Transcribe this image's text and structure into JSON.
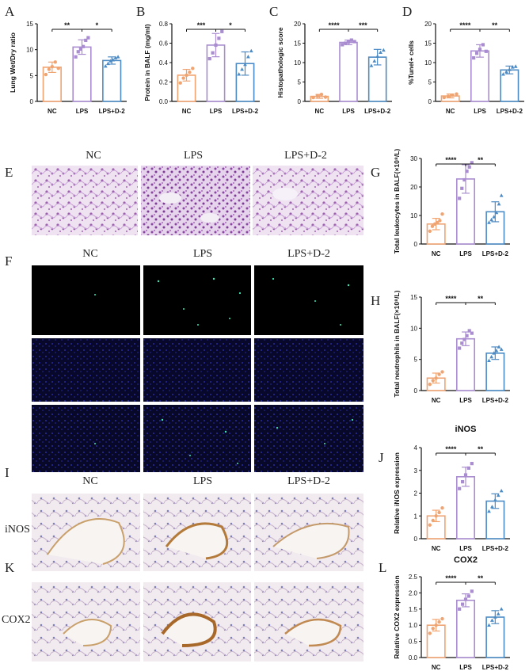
{
  "figure": {
    "panel_letters": [
      "A",
      "B",
      "C",
      "D",
      "E",
      "F",
      "G",
      "H",
      "I",
      "J",
      "K",
      "L"
    ],
    "histology_conditions": [
      "NC",
      "LPS",
      "LPS+D-2"
    ],
    "stain_row_labels": {
      "inos": "iNOS",
      "cox2": "COX2"
    },
    "colors": {
      "NC": "#f0a472",
      "LPS": "#a98dd0",
      "LPS+D-2": "#4d8bc4",
      "he_stain": "#c9a3d6",
      "ihc_stain": "#d9c7d8",
      "fluorescence_bg": "#000000",
      "dapi_bg": "#0c0c3a"
    }
  },
  "chart_data": [
    {
      "panel": "A",
      "type": "bar",
      "title": "",
      "categories": [
        "NC",
        "LPS",
        "LPS+D-2"
      ],
      "values": [
        6.6,
        10.5,
        7.9
      ],
      "sd": [
        1.0,
        1.4,
        0.7
      ],
      "points": [
        [
          5.2,
          6.2,
          6.7,
          7.6,
          6.4
        ],
        [
          8.6,
          9.6,
          10.1,
          10.6,
          11.8,
          12.3
        ],
        [
          6.8,
          7.3,
          7.8,
          8.0,
          8.4,
          8.6
        ]
      ],
      "ylabel": "Lung Wet/Dry ratio",
      "ylim": [
        0,
        15
      ],
      "yticks": [
        0,
        5,
        10,
        15
      ],
      "significance": [
        {
          "from": 0,
          "to": 1,
          "label": "**"
        },
        {
          "from": 1,
          "to": 2,
          "label": "*"
        }
      ]
    },
    {
      "panel": "B",
      "type": "bar",
      "title": "",
      "categories": [
        "NC",
        "LPS",
        "LPS+D-2"
      ],
      "values": [
        0.27,
        0.58,
        0.39
      ],
      "sd": [
        0.06,
        0.12,
        0.12
      ],
      "points": [
        [
          0.19,
          0.24,
          0.27,
          0.3,
          0.34
        ],
        [
          0.44,
          0.5,
          0.58,
          0.65,
          0.72
        ],
        [
          0.28,
          0.33,
          0.38,
          0.46,
          0.52
        ]
      ],
      "ylabel": "Protein in BALF (mg/ml)",
      "ylim": [
        0,
        0.8
      ],
      "yticks": [
        0.0,
        0.2,
        0.4,
        0.6,
        0.8
      ],
      "significance": [
        {
          "from": 0,
          "to": 1,
          "label": "***"
        },
        {
          "from": 1,
          "to": 2,
          "label": "*"
        }
      ]
    },
    {
      "panel": "C",
      "type": "bar",
      "title": "",
      "categories": [
        "NC",
        "LPS",
        "LPS+D-2"
      ],
      "values": [
        1.3,
        15.2,
        11.4
      ],
      "sd": [
        0.5,
        0.6,
        2.0
      ],
      "points": [
        [
          1.0,
          1.4,
          1.8,
          1.1
        ],
        [
          14.6,
          15.0,
          15.3,
          15.8,
          15.4
        ],
        [
          9.2,
          10.4,
          11.6,
          12.6,
          13.2
        ]
      ],
      "ylabel": "Histopathologic score",
      "ylim": [
        0,
        20
      ],
      "yticks": [
        0,
        5,
        10,
        15,
        20
      ],
      "significance": [
        {
          "from": 0,
          "to": 1,
          "label": "****"
        },
        {
          "from": 1,
          "to": 2,
          "label": "***"
        }
      ]
    },
    {
      "panel": "D",
      "type": "bar",
      "title": "",
      "categories": [
        "NC",
        "LPS",
        "LPS+D-2"
      ],
      "values": [
        1.4,
        13.0,
        8.1
      ],
      "sd": [
        0.5,
        1.6,
        1.0
      ],
      "points": [
        [
          1.0,
          1.3,
          1.6,
          1.9
        ],
        [
          11.2,
          12.4,
          13.4,
          14.6,
          12.9
        ],
        [
          7.0,
          7.6,
          8.2,
          8.8,
          9.0
        ]
      ],
      "ylabel": "%Tunel+ cells",
      "ylim": [
        0,
        20
      ],
      "yticks": [
        0,
        5,
        10,
        15,
        20
      ],
      "significance": [
        {
          "from": 0,
          "to": 1,
          "label": "****"
        },
        {
          "from": 1,
          "to": 2,
          "label": "**"
        }
      ]
    },
    {
      "panel": "G",
      "type": "bar",
      "title": "",
      "categories": [
        "NC",
        "LPS",
        "LPS+D-2"
      ],
      "values": [
        7.0,
        22.8,
        11.3
      ],
      "sd": [
        2.0,
        5.0,
        3.5
      ],
      "points": [
        [
          4.5,
          6.2,
          7.0,
          7.5,
          8.2,
          10.5
        ],
        [
          16.0,
          19.5,
          22.5,
          25.5,
          27.0,
          28.5
        ],
        [
          7.5,
          8.5,
          9.5,
          11.0,
          14.0,
          17.0
        ]
      ],
      "ylabel": "Total leukocytes in BALF(×10⁸/L)",
      "ylim": [
        0,
        30
      ],
      "yticks": [
        0,
        10,
        20,
        30
      ],
      "significance": [
        {
          "from": 0,
          "to": 1,
          "label": "****"
        },
        {
          "from": 1,
          "to": 2,
          "label": "**"
        }
      ]
    },
    {
      "panel": "H",
      "type": "bar",
      "title": "",
      "categories": [
        "NC",
        "LPS",
        "LPS+D-2"
      ],
      "values": [
        2.0,
        8.3,
        6.0
      ],
      "sd": [
        0.8,
        1.1,
        1.0
      ],
      "points": [
        [
          1.0,
          1.6,
          2.0,
          2.6,
          3.0
        ],
        [
          6.8,
          7.6,
          8.2,
          8.8,
          9.6,
          9.2
        ],
        [
          4.8,
          5.4,
          6.0,
          6.4,
          7.0,
          6.6
        ]
      ],
      "ylabel": "Total neutrophils in BALF(×10⁸/L)",
      "ylim": [
        0,
        15
      ],
      "yticks": [
        0,
        5,
        10,
        15
      ],
      "significance": [
        {
          "from": 0,
          "to": 1,
          "label": "****"
        },
        {
          "from": 1,
          "to": 2,
          "label": "**"
        }
      ]
    },
    {
      "panel": "J",
      "type": "bar",
      "title": "iNOS",
      "categories": [
        "NC",
        "LPS",
        "LPS+D-2"
      ],
      "values": [
        1.0,
        2.72,
        1.65
      ],
      "sd": [
        0.25,
        0.42,
        0.32
      ],
      "points": [
        [
          0.6,
          0.8,
          1.0,
          1.15,
          1.35
        ],
        [
          2.2,
          2.5,
          2.8,
          3.1,
          3.3
        ],
        [
          1.2,
          1.4,
          1.7,
          1.9,
          2.1
        ]
      ],
      "ylabel": "Relative iNOS expression",
      "ylim": [
        0,
        4
      ],
      "yticks": [
        0,
        1,
        2,
        3,
        4
      ],
      "significance": [
        {
          "from": 0,
          "to": 1,
          "label": "****"
        },
        {
          "from": 1,
          "to": 2,
          "label": "**"
        }
      ]
    },
    {
      "panel": "L",
      "type": "bar",
      "title": "COX2",
      "categories": [
        "NC",
        "LPS",
        "LPS+D-2"
      ],
      "values": [
        1.0,
        1.77,
        1.25
      ],
      "sd": [
        0.18,
        0.2,
        0.2
      ],
      "points": [
        [
          0.75,
          0.9,
          1.0,
          1.1,
          1.2
        ],
        [
          1.5,
          1.65,
          1.8,
          1.9,
          2.05
        ],
        [
          1.0,
          1.15,
          1.25,
          1.35,
          1.5
        ]
      ],
      "ylabel": "Relative COX2 expression",
      "ylim": [
        0,
        2.5
      ],
      "yticks": [
        0.0,
        0.5,
        1.0,
        1.5,
        2.0,
        2.5
      ],
      "significance": [
        {
          "from": 0,
          "to": 1,
          "label": "****"
        },
        {
          "from": 1,
          "to": 2,
          "label": "**"
        }
      ]
    }
  ]
}
